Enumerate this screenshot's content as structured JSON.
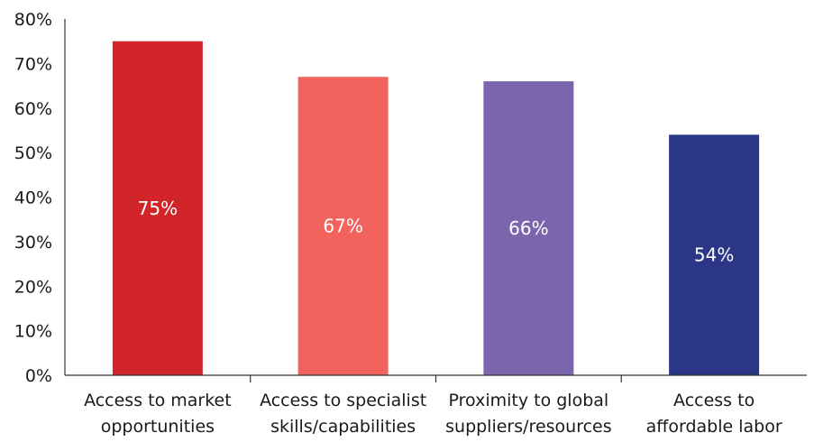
{
  "chart_data": {
    "type": "bar",
    "categories": [
      [
        "Access to market",
        "opportunities"
      ],
      [
        "Access to specialist",
        "skills/capabilities"
      ],
      [
        "Proximity to global",
        "suppliers/resources"
      ],
      [
        "Access to",
        "affordable labor"
      ]
    ],
    "values": [
      75,
      67,
      66,
      54
    ],
    "data_labels": [
      "75%",
      "67%",
      "66%",
      "54%"
    ],
    "colors": [
      "#d12529",
      "#f2635e",
      "#7b66ad",
      "#2b3687"
    ],
    "ylim": [
      0,
      80
    ],
    "yticks": [
      0,
      10,
      20,
      30,
      40,
      50,
      60,
      70,
      80
    ],
    "ytick_labels": [
      "0%",
      "10%",
      "20%",
      "30%",
      "40%",
      "50%",
      "60%",
      "70%",
      "80%"
    ],
    "grid": false,
    "legend": "none"
  }
}
